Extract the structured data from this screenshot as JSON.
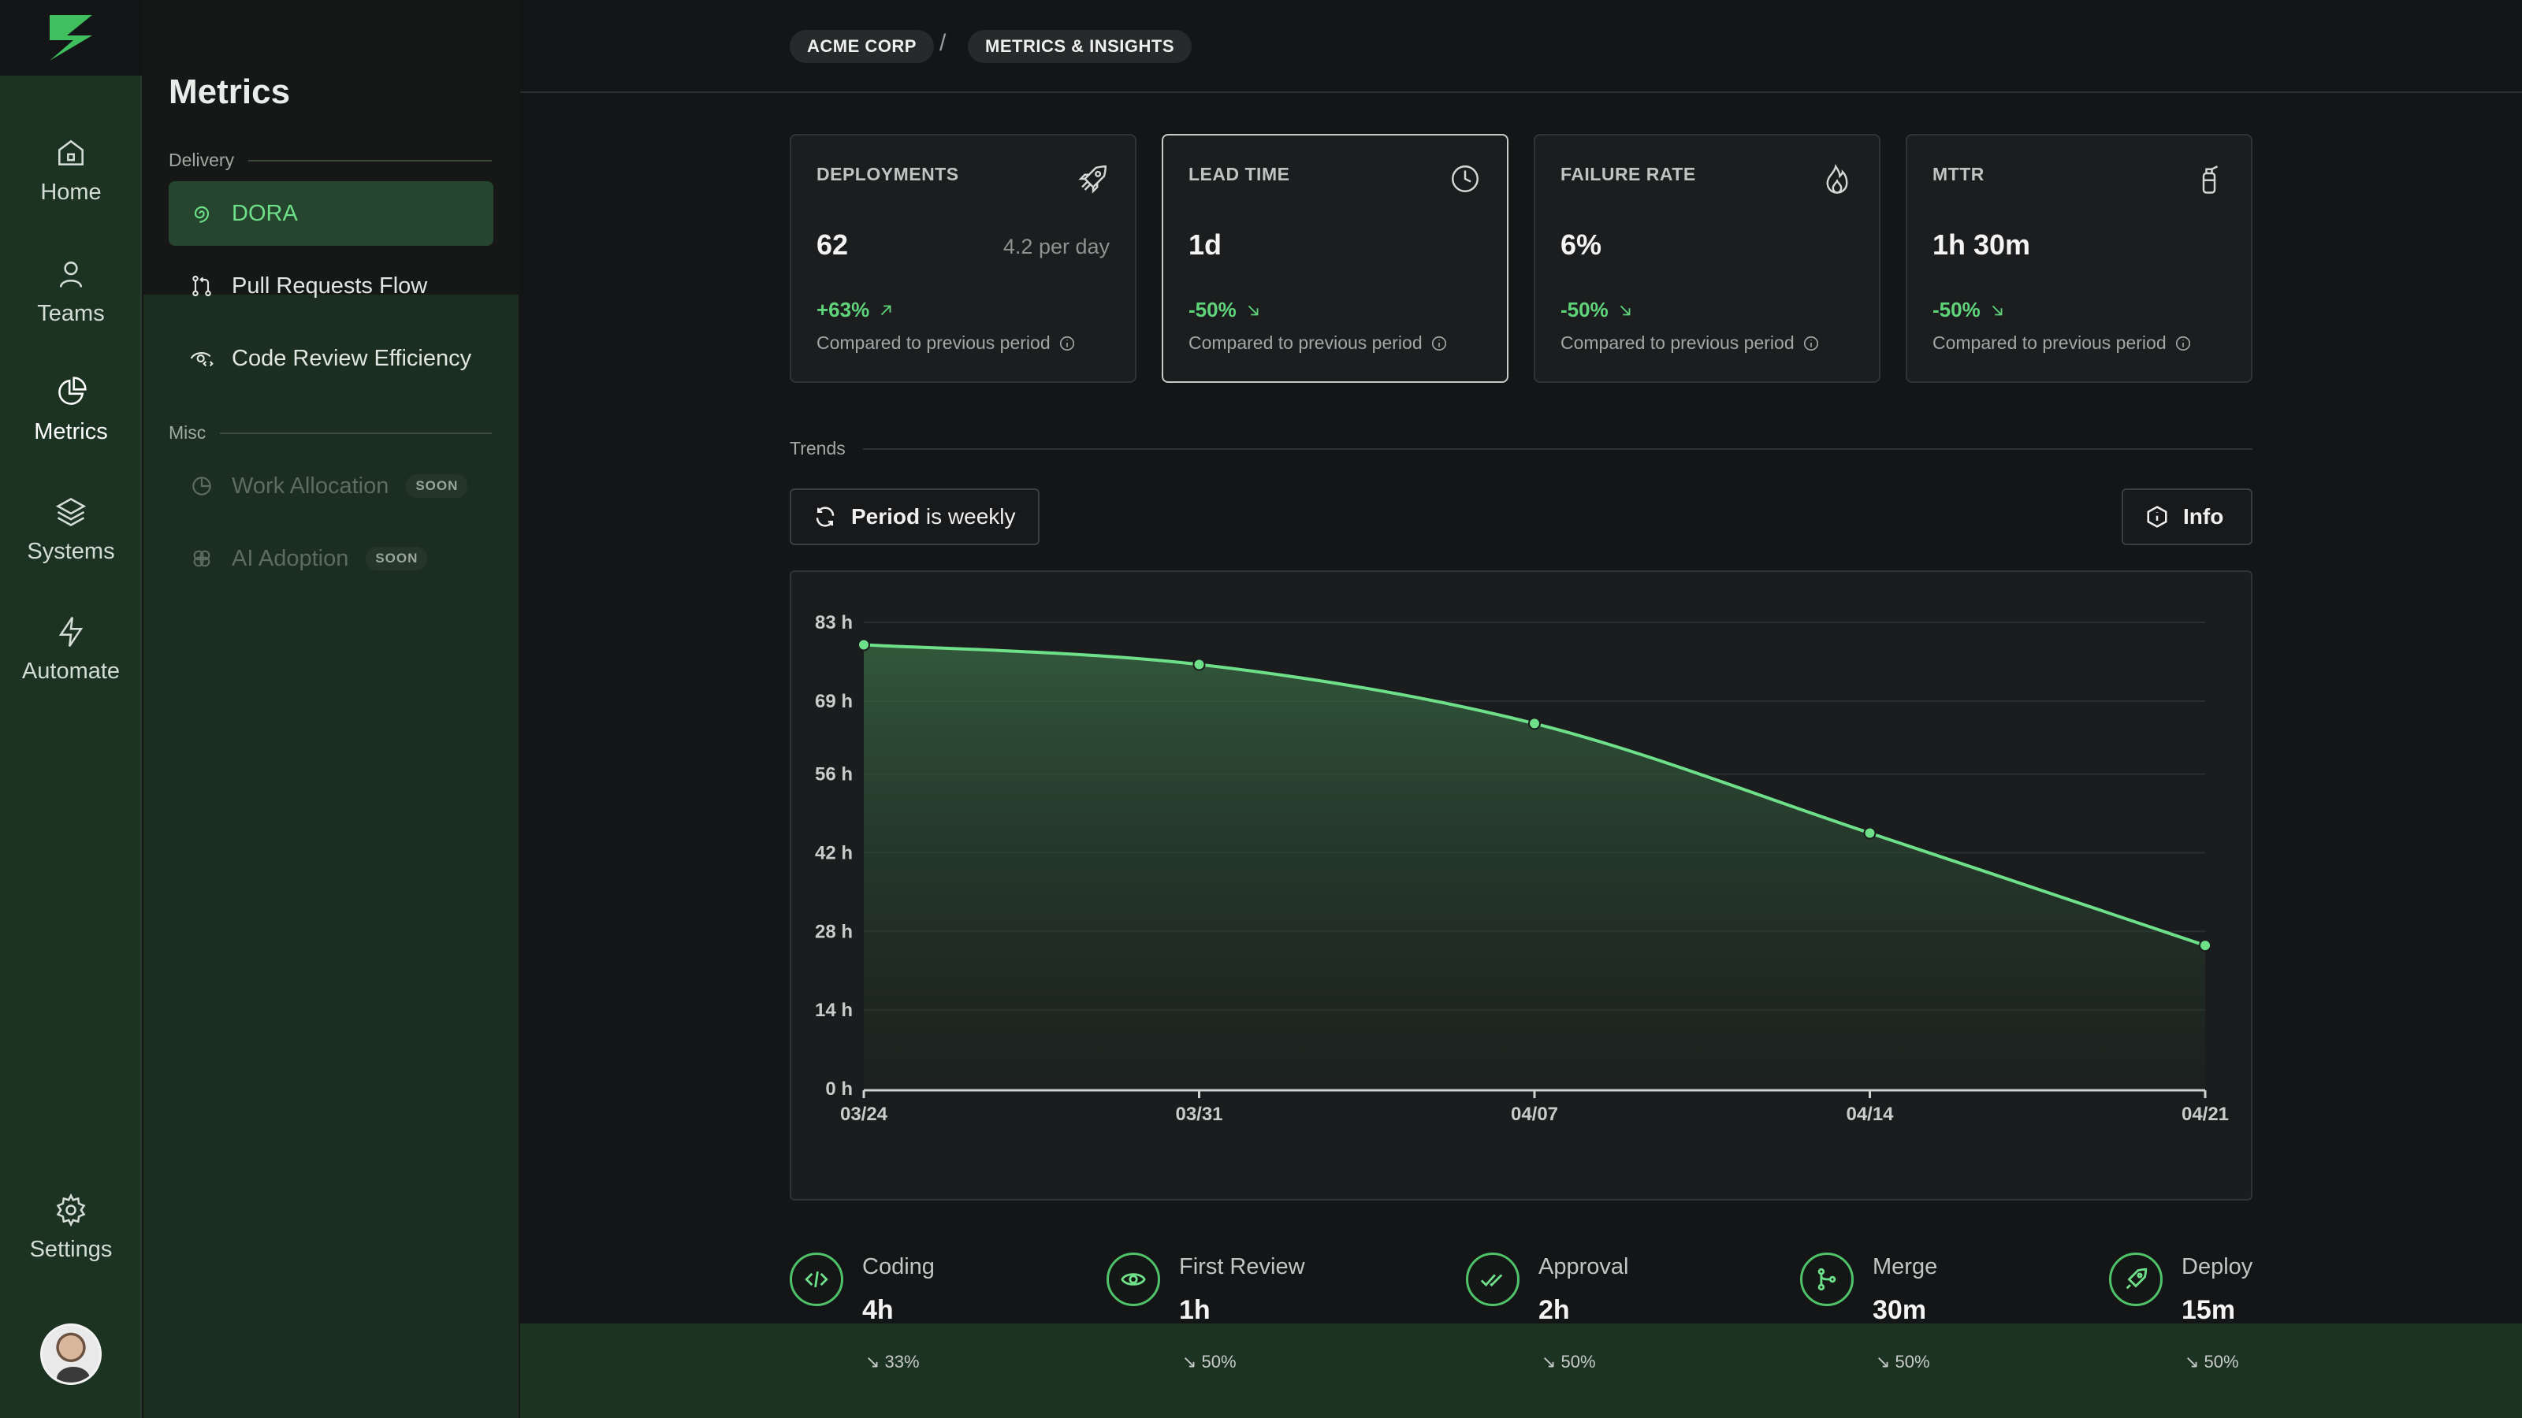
{
  "rail": {
    "items": [
      {
        "label": "Home",
        "icon": "home-icon"
      },
      {
        "label": "Teams",
        "icon": "user-icon"
      },
      {
        "label": "Metrics",
        "icon": "pie-chart-icon"
      },
      {
        "label": "Systems",
        "icon": "layers-icon"
      },
      {
        "label": "Automate",
        "icon": "bolt-icon"
      }
    ],
    "settings_label": "Settings"
  },
  "sidebar": {
    "title": "Metrics",
    "groups": [
      {
        "label": "Delivery"
      },
      {
        "label": "Misc"
      }
    ],
    "items": [
      {
        "label": "DORA"
      },
      {
        "label": "Pull Requests Flow"
      },
      {
        "label": "Code Review Efficiency"
      },
      {
        "label": "Work Allocation",
        "badge": "SOON"
      },
      {
        "label": "AI Adoption",
        "badge": "SOON"
      }
    ]
  },
  "breadcrumb": {
    "items": [
      "ACME CORP",
      "METRICS & INSIGHTS"
    ],
    "separator": "/"
  },
  "cards": [
    {
      "label": "DEPLOYMENTS",
      "value": "62",
      "sub": "4.2 per day",
      "delta": "+63%",
      "compare": "Compared to previous period",
      "icon": "rocket-icon"
    },
    {
      "label": "LEAD TIME",
      "value": "1d",
      "sub": "",
      "delta": "-50%",
      "compare": "Compared to previous period",
      "icon": "clock-icon"
    },
    {
      "label": "FAILURE RATE",
      "value": "6%",
      "sub": "",
      "delta": "-50%",
      "compare": "Compared to previous period",
      "icon": "flame-icon"
    },
    {
      "label": "MTTR",
      "value": "1h 30m",
      "sub": "",
      "delta": "-50%",
      "compare": "Compared to previous period",
      "icon": "fire-extinguisher-icon"
    }
  ],
  "trends": {
    "label": "Trends",
    "period_strong": "Period",
    "period_rest": " is weekly",
    "info_label": "Info"
  },
  "chart_data": {
    "type": "area",
    "title": "",
    "xlabel": "",
    "ylabel": "",
    "x": [
      "03/24",
      "03/31",
      "04/07",
      "04/14",
      "04/21"
    ],
    "series": [
      {
        "name": "Lead time",
        "values": [
          79,
          75.5,
          65,
          45.5,
          25.5
        ]
      }
    ],
    "y_ticks": [
      0,
      14,
      28,
      42,
      56,
      69,
      83
    ],
    "y_tick_labels": [
      "0 h",
      "14 h",
      "28 h",
      "42 h",
      "56 h",
      "69 h",
      "83 h"
    ],
    "ylim": [
      0,
      83
    ],
    "grid": true,
    "color": "#6fe08a"
  },
  "stages": [
    {
      "name": "Coding",
      "time": "4h",
      "pct": "↘ 33%",
      "icon": "code-icon"
    },
    {
      "name": "First Review",
      "time": "1h",
      "pct": "↘ 50%",
      "icon": "eye-icon"
    },
    {
      "name": "Approval",
      "time": "2h",
      "pct": "↘ 50%",
      "icon": "double-check-icon"
    },
    {
      "name": "Merge",
      "time": "30m",
      "pct": "↘ 50%",
      "icon": "git-merge-icon"
    },
    {
      "name": "Deploy",
      "time": "15m",
      "pct": "↘ 50%",
      "icon": "rocket-icon"
    }
  ],
  "colors": {
    "accent": "#6fe08a",
    "rail": "#1c3322",
    "background": "#141516"
  }
}
